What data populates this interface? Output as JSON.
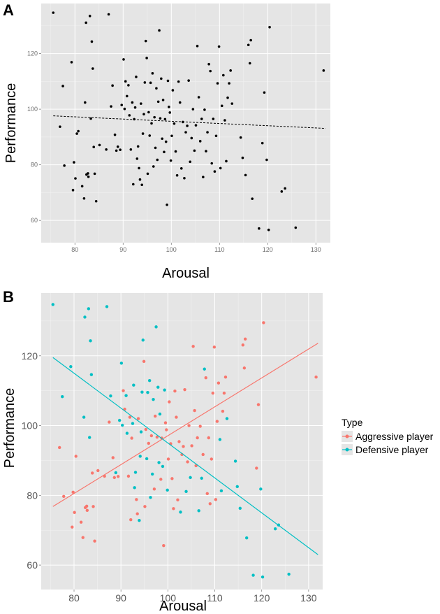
{
  "chart_data": [
    {
      "panel": "A",
      "type": "scatter",
      "xlabel": "Arousal",
      "ylabel": "Performance",
      "xlim": [
        73,
        133
      ],
      "ylim": [
        52,
        138
      ],
      "xticks": [
        80,
        90,
        100,
        110,
        120,
        130
      ],
      "yticks": [
        60,
        80,
        100,
        120
      ],
      "grid": true,
      "background": "#e5e5e5",
      "point_color": "#000000",
      "trendline": {
        "style": "dashed",
        "color": "#000000",
        "x": [
          75.5,
          132
        ],
        "y": [
          97.6,
          93.1
        ]
      },
      "points": [
        [
          75.5,
          134.7
        ],
        [
          76.9,
          93.7
        ],
        [
          77.5,
          108.3
        ],
        [
          77.8,
          79.7
        ],
        [
          79.3,
          116.9
        ],
        [
          79.6,
          70.9
        ],
        [
          79.8,
          80.9
        ],
        [
          80.1,
          75.1
        ],
        [
          80.4,
          91.2
        ],
        [
          80.7,
          92.1
        ],
        [
          81.5,
          72.3
        ],
        [
          81.9,
          67.9
        ],
        [
          82.1,
          102.4
        ],
        [
          82.3,
          131.1
        ],
        [
          82.4,
          76.5
        ],
        [
          82.7,
          76.9
        ],
        [
          82.8,
          75.7
        ],
        [
          83.1,
          133.5
        ],
        [
          83.3,
          96.6
        ],
        [
          83.5,
          124.3
        ],
        [
          83.7,
          114.6
        ],
        [
          83.9,
          86.4
        ],
        [
          84.1,
          76.8
        ],
        [
          84.4,
          66.9
        ],
        [
          85.1,
          87.1
        ],
        [
          86.5,
          85.5
        ],
        [
          87.0,
          134.1
        ],
        [
          87.5,
          101.0
        ],
        [
          87.8,
          108.5
        ],
        [
          88.3,
          90.8
        ],
        [
          88.6,
          85.1
        ],
        [
          88.9,
          86.5
        ],
        [
          89.4,
          85.4
        ],
        [
          89.7,
          101.5
        ],
        [
          90.1,
          117.9
        ],
        [
          90.3,
          100.1
        ],
        [
          90.5,
          110.0
        ],
        [
          90.8,
          104.7
        ],
        [
          91.1,
          108.6
        ],
        [
          91.3,
          97.8
        ],
        [
          91.6,
          85.5
        ],
        [
          91.9,
          102.4
        ],
        [
          92.1,
          73.0
        ],
        [
          92.3,
          96.4
        ],
        [
          92.5,
          100.6
        ],
        [
          92.7,
          111.6
        ],
        [
          92.9,
          82.2
        ],
        [
          93.1,
          86.6
        ],
        [
          93.3,
          78.8
        ],
        [
          93.5,
          74.7
        ],
        [
          93.7,
          102.0
        ],
        [
          93.9,
          72.8
        ],
        [
          94.1,
          91.2
        ],
        [
          94.3,
          98.2
        ],
        [
          94.5,
          109.6
        ],
        [
          94.7,
          124.5
        ],
        [
          94.9,
          118.4
        ],
        [
          95.1,
          76.8
        ],
        [
          95.3,
          98.9
        ],
        [
          95.5,
          90.5
        ],
        [
          95.7,
          109.5
        ],
        [
          95.9,
          94.9
        ],
        [
          96.1,
          112.9
        ],
        [
          96.3,
          79.4
        ],
        [
          96.5,
          97.1
        ],
        [
          96.7,
          86.1
        ],
        [
          96.9,
          107.5
        ],
        [
          97.1,
          81.8
        ],
        [
          97.3,
          102.7
        ],
        [
          97.5,
          128.3
        ],
        [
          97.7,
          96.7
        ],
        [
          97.9,
          111.0
        ],
        [
          98.1,
          89.4
        ],
        [
          98.3,
          103.3
        ],
        [
          98.5,
          84.6
        ],
        [
          98.7,
          96.4
        ],
        [
          98.9,
          88.3
        ],
        [
          99.1,
          65.6
        ],
        [
          99.3,
          110.2
        ],
        [
          99.5,
          100.8
        ],
        [
          99.7,
          98.8
        ],
        [
          99.9,
          81.5
        ],
        [
          100.1,
          90.4
        ],
        [
          100.3,
          106.8
        ],
        [
          100.6,
          94.8
        ],
        [
          100.9,
          84.8
        ],
        [
          101.2,
          76.2
        ],
        [
          101.5,
          109.9
        ],
        [
          101.8,
          102.4
        ],
        [
          102.1,
          78.7
        ],
        [
          102.4,
          95.4
        ],
        [
          102.7,
          75.2
        ],
        [
          103.0,
          91.7
        ],
        [
          103.3,
          94.0
        ],
        [
          103.6,
          110.3
        ],
        [
          103.9,
          81.1
        ],
        [
          104.2,
          89.6
        ],
        [
          104.5,
          100.0
        ],
        [
          104.8,
          85.1
        ],
        [
          105.1,
          94.2
        ],
        [
          105.4,
          122.7
        ],
        [
          105.7,
          104.3
        ],
        [
          106.0,
          88.5
        ],
        [
          106.3,
          96.5
        ],
        [
          106.6,
          75.6
        ],
        [
          106.9,
          99.8
        ],
        [
          107.2,
          84.9
        ],
        [
          107.5,
          91.7
        ],
        [
          107.8,
          116.2
        ],
        [
          108.1,
          113.7
        ],
        [
          108.4,
          80.5
        ],
        [
          108.7,
          96.5
        ],
        [
          109.0,
          77.6
        ],
        [
          109.3,
          90.4
        ],
        [
          109.6,
          109.3
        ],
        [
          109.9,
          122.5
        ],
        [
          110.2,
          78.8
        ],
        [
          110.5,
          101.2
        ],
        [
          110.8,
          112.2
        ],
        [
          111.1,
          96.0
        ],
        [
          111.4,
          81.3
        ],
        [
          111.7,
          104.1
        ],
        [
          112.0,
          109.3
        ],
        [
          112.3,
          113.9
        ],
        [
          112.6,
          102.0
        ],
        [
          114.4,
          89.8
        ],
        [
          114.8,
          82.5
        ],
        [
          115.4,
          76.3
        ],
        [
          116.0,
          123.1
        ],
        [
          116.3,
          116.5
        ],
        [
          116.5,
          124.8
        ],
        [
          116.8,
          67.8
        ],
        [
          118.2,
          57.1
        ],
        [
          118.9,
          87.8
        ],
        [
          119.3,
          106.0
        ],
        [
          119.8,
          81.8
        ],
        [
          120.2,
          56.6
        ],
        [
          120.4,
          129.5
        ],
        [
          122.9,
          70.4
        ],
        [
          123.6,
          71.5
        ],
        [
          125.8,
          57.4
        ],
        [
          131.6,
          113.9
        ]
      ]
    },
    {
      "panel": "B",
      "type": "scatter",
      "xlabel": "Arousal",
      "ylabel": "Performance",
      "xlim": [
        73,
        133
      ],
      "ylim": [
        53,
        138
      ],
      "xticks": [
        80,
        90,
        100,
        110,
        120,
        130
      ],
      "yticks": [
        60,
        80,
        100,
        120
      ],
      "grid": true,
      "background": "#e5e5e5",
      "legend": {
        "title": "Type",
        "placement": "right"
      },
      "series": [
        {
          "name": "Aggressive player",
          "color": "#f8766d",
          "trendline": {
            "x": [
              75.5,
              132
            ],
            "y": [
              76.8,
              123.6
            ]
          },
          "points": [
            [
              76.9,
              93.7
            ],
            [
              77.8,
              79.7
            ],
            [
              79.6,
              70.9
            ],
            [
              79.8,
              80.9
            ],
            [
              80.1,
              75.1
            ],
            [
              80.4,
              91.2
            ],
            [
              81.5,
              72.3
            ],
            [
              81.9,
              67.9
            ],
            [
              82.4,
              76.5
            ],
            [
              82.7,
              76.9
            ],
            [
              82.8,
              75.7
            ],
            [
              83.9,
              86.4
            ],
            [
              84.1,
              76.8
            ],
            [
              84.4,
              66.9
            ],
            [
              85.1,
              87.1
            ],
            [
              86.5,
              85.5
            ],
            [
              87.5,
              101.0
            ],
            [
              88.3,
              90.8
            ],
            [
              88.6,
              85.1
            ],
            [
              89.4,
              85.4
            ],
            [
              90.5,
              110.0
            ],
            [
              90.8,
              104.7
            ],
            [
              91.6,
              85.5
            ],
            [
              91.9,
              102.4
            ],
            [
              92.1,
              73.0
            ],
            [
              92.3,
              96.4
            ],
            [
              93.3,
              78.8
            ],
            [
              93.5,
              74.7
            ],
            [
              93.7,
              102.0
            ],
            [
              94.9,
              118.4
            ],
            [
              95.1,
              76.8
            ],
            [
              95.3,
              98.9
            ],
            [
              95.9,
              94.9
            ],
            [
              96.5,
              97.1
            ],
            [
              97.1,
              81.8
            ],
            [
              97.3,
              102.7
            ],
            [
              97.7,
              96.7
            ],
            [
              98.5,
              84.6
            ],
            [
              98.7,
              96.4
            ],
            [
              99.1,
              65.6
            ],
            [
              99.5,
              100.8
            ],
            [
              99.7,
              98.8
            ],
            [
              100.1,
              90.4
            ],
            [
              100.3,
              106.8
            ],
            [
              100.6,
              94.8
            ],
            [
              100.9,
              84.8
            ],
            [
              101.2,
              76.2
            ],
            [
              101.5,
              109.9
            ],
            [
              101.8,
              102.4
            ],
            [
              102.1,
              78.7
            ],
            [
              102.4,
              95.4
            ],
            [
              103.0,
              91.7
            ],
            [
              103.3,
              94.0
            ],
            [
              103.6,
              110.3
            ],
            [
              104.2,
              89.6
            ],
            [
              104.5,
              100.0
            ],
            [
              105.1,
              94.2
            ],
            [
              105.4,
              122.7
            ],
            [
              105.7,
              104.3
            ],
            [
              106.0,
              88.5
            ],
            [
              106.3,
              96.5
            ],
            [
              106.9,
              99.8
            ],
            [
              107.5,
              91.7
            ],
            [
              108.1,
              113.7
            ],
            [
              108.4,
              80.5
            ],
            [
              108.7,
              96.5
            ],
            [
              109.0,
              77.6
            ],
            [
              109.3,
              90.4
            ],
            [
              109.6,
              109.3
            ],
            [
              109.9,
              122.5
            ],
            [
              110.2,
              78.8
            ],
            [
              110.5,
              101.2
            ],
            [
              110.8,
              112.2
            ],
            [
              111.7,
              104.1
            ],
            [
              112.0,
              109.3
            ],
            [
              112.3,
              113.9
            ],
            [
              116.0,
              123.1
            ],
            [
              116.3,
              116.5
            ],
            [
              116.5,
              124.8
            ],
            [
              118.9,
              87.8
            ],
            [
              119.3,
              106.0
            ],
            [
              120.4,
              129.5
            ],
            [
              131.6,
              113.9
            ]
          ]
        },
        {
          "name": "Defensive player",
          "color": "#00bfc4",
          "trendline": {
            "x": [
              75.5,
              132
            ],
            "y": [
              119.5,
              63.0
            ]
          },
          "points": [
            [
              75.5,
              134.7
            ],
            [
              77.5,
              108.3
            ],
            [
              79.3,
              116.9
            ],
            [
              82.1,
              102.4
            ],
            [
              82.3,
              131.1
            ],
            [
              83.1,
              133.5
            ],
            [
              83.3,
              96.6
            ],
            [
              83.5,
              124.3
            ],
            [
              83.7,
              114.6
            ],
            [
              87.0,
              134.1
            ],
            [
              87.8,
              108.5
            ],
            [
              88.9,
              86.5
            ],
            [
              89.7,
              101.5
            ],
            [
              90.1,
              117.9
            ],
            [
              90.3,
              100.1
            ],
            [
              91.1,
              108.6
            ],
            [
              91.3,
              97.8
            ],
            [
              92.5,
              100.6
            ],
            [
              92.7,
              111.6
            ],
            [
              92.9,
              82.2
            ],
            [
              93.1,
              86.6
            ],
            [
              93.9,
              72.8
            ],
            [
              94.1,
              91.2
            ],
            [
              94.3,
              98.2
            ],
            [
              94.5,
              109.6
            ],
            [
              94.7,
              124.5
            ],
            [
              95.5,
              90.5
            ],
            [
              95.7,
              109.5
            ],
            [
              96.1,
              112.9
            ],
            [
              96.3,
              79.4
            ],
            [
              96.7,
              86.1
            ],
            [
              96.9,
              107.5
            ],
            [
              97.5,
              128.3
            ],
            [
              97.9,
              111.0
            ],
            [
              98.1,
              89.4
            ],
            [
              98.3,
              103.3
            ],
            [
              98.9,
              88.3
            ],
            [
              99.3,
              110.2
            ],
            [
              99.9,
              81.5
            ],
            [
              102.7,
              75.2
            ],
            [
              103.9,
              81.1
            ],
            [
              104.8,
              85.1
            ],
            [
              106.6,
              75.6
            ],
            [
              107.2,
              84.9
            ],
            [
              107.8,
              116.2
            ],
            [
              111.1,
              96.0
            ],
            [
              111.4,
              81.3
            ],
            [
              112.6,
              102.0
            ],
            [
              114.4,
              89.8
            ],
            [
              114.8,
              82.5
            ],
            [
              115.4,
              76.3
            ],
            [
              116.8,
              67.8
            ],
            [
              118.2,
              57.1
            ],
            [
              119.8,
              81.8
            ],
            [
              120.2,
              56.6
            ],
            [
              122.9,
              70.4
            ],
            [
              123.6,
              71.5
            ],
            [
              125.8,
              57.4
            ]
          ]
        }
      ]
    }
  ]
}
